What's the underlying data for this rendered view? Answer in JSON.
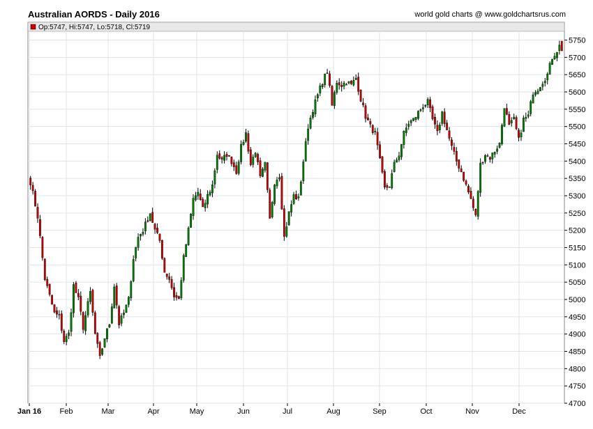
{
  "title": "Australian AORDS - Daily 2016",
  "credit": "world gold charts @ www.goldchartsrus.com",
  "colors": {
    "up": "#008000",
    "down": "#cc0000",
    "wick": "#000000",
    "grid": "#dde6ee",
    "header_bg": "#e8e8e8"
  },
  "chart_data": {
    "type": "candlestick",
    "title": "Australian AORDS - Daily 2016",
    "legend": {
      "label": "Op:5747, Hi:5747, Lo:5718, Cl:5719",
      "placement": "top-left"
    },
    "ylim": [
      4700,
      5775
    ],
    "y_ticks": [
      "4700",
      "4750",
      "4800",
      "4850",
      "4900",
      "4950",
      "5000",
      "5050",
      "5100",
      "5150",
      "5200",
      "5250",
      "5300",
      "5350",
      "5400",
      "5450",
      "5500",
      "5550",
      "5600",
      "5650",
      "5700",
      "5750"
    ],
    "x_tick_labels": [
      "Jan 16",
      "Feb",
      "Mar",
      "Apr",
      "May",
      "Jun",
      "Jul",
      "Aug",
      "Sep",
      "Oct",
      "Nov",
      "Dec"
    ],
    "grid": true,
    "close_path": [
      [
        0,
        5340
      ],
      [
        3,
        5240
      ],
      [
        6,
        5060
      ],
      [
        10,
        4960
      ],
      [
        12,
        4950
      ],
      [
        14,
        4880
      ],
      [
        16,
        4900
      ],
      [
        18,
        5040
      ],
      [
        20,
        5000
      ],
      [
        22,
        4920
      ],
      [
        25,
        5020
      ],
      [
        27,
        4900
      ],
      [
        29,
        4830
      ],
      [
        31,
        4890
      ],
      [
        33,
        4930
      ],
      [
        35,
        5040
      ],
      [
        37,
        4930
      ],
      [
        39,
        4960
      ],
      [
        41,
        5000
      ],
      [
        43,
        5120
      ],
      [
        45,
        5180
      ],
      [
        47,
        5200
      ],
      [
        50,
        5250
      ],
      [
        52,
        5200
      ],
      [
        54,
        5170
      ],
      [
        56,
        5080
      ],
      [
        58,
        5060
      ],
      [
        60,
        5010
      ],
      [
        62,
        5000
      ],
      [
        64,
        5120
      ],
      [
        66,
        5200
      ],
      [
        68,
        5290
      ],
      [
        70,
        5310
      ],
      [
        72,
        5260
      ],
      [
        74,
        5300
      ],
      [
        76,
        5330
      ],
      [
        78,
        5420
      ],
      [
        80,
        5400
      ],
      [
        82,
        5420
      ],
      [
        84,
        5400
      ],
      [
        86,
        5370
      ],
      [
        88,
        5440
      ],
      [
        90,
        5480
      ],
      [
        92,
        5390
      ],
      [
        94,
        5430
      ],
      [
        96,
        5350
      ],
      [
        98,
        5390
      ],
      [
        100,
        5230
      ],
      [
        102,
        5340
      ],
      [
        104,
        5360
      ],
      [
        106,
        5180
      ],
      [
        108,
        5250
      ],
      [
        110,
        5300
      ],
      [
        112,
        5290
      ],
      [
        114,
        5400
      ],
      [
        116,
        5500
      ],
      [
        118,
        5550
      ],
      [
        120,
        5590
      ],
      [
        122,
        5630
      ],
      [
        124,
        5660
      ],
      [
        126,
        5560
      ],
      [
        128,
        5630
      ],
      [
        130,
        5620
      ],
      [
        132,
        5630
      ],
      [
        134,
        5620
      ],
      [
        136,
        5640
      ],
      [
        138,
        5580
      ],
      [
        140,
        5530
      ],
      [
        142,
        5500
      ],
      [
        144,
        5480
      ],
      [
        146,
        5400
      ],
      [
        148,
        5320
      ],
      [
        150,
        5330
      ],
      [
        152,
        5390
      ],
      [
        154,
        5420
      ],
      [
        156,
        5480
      ],
      [
        158,
        5510
      ],
      [
        160,
        5520
      ],
      [
        162,
        5540
      ],
      [
        164,
        5560
      ],
      [
        166,
        5570
      ],
      [
        168,
        5520
      ],
      [
        170,
        5480
      ],
      [
        172,
        5540
      ],
      [
        174,
        5490
      ],
      [
        176,
        5440
      ],
      [
        178,
        5400
      ],
      [
        180,
        5370
      ],
      [
        182,
        5330
      ],
      [
        184,
        5290
      ],
      [
        186,
        5240
      ],
      [
        188,
        5390
      ],
      [
        190,
        5420
      ],
      [
        192,
        5410
      ],
      [
        194,
        5430
      ],
      [
        196,
        5450
      ],
      [
        198,
        5560
      ],
      [
        200,
        5500
      ],
      [
        202,
        5520
      ],
      [
        204,
        5460
      ],
      [
        206,
        5520
      ],
      [
        208,
        5530
      ],
      [
        210,
        5600
      ],
      [
        212,
        5610
      ],
      [
        214,
        5630
      ],
      [
        216,
        5650
      ],
      [
        218,
        5700
      ],
      [
        220,
        5720
      ],
      [
        222,
        5745
      ]
    ],
    "n_days": 223,
    "last_candle": {
      "open": 5747,
      "high": 5747,
      "low": 5718,
      "close": 5719
    }
  }
}
